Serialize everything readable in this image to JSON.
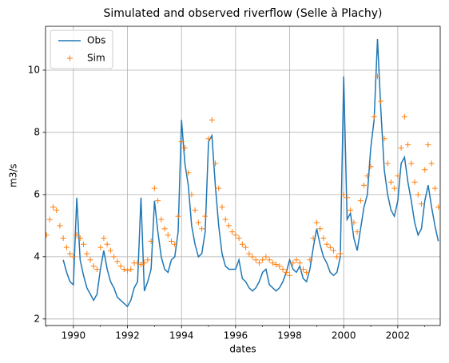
{
  "chart_data": {
    "type": "line",
    "title": "Simulated and observed riverflow (Selle à Plachy)",
    "xlabel": "dates",
    "ylabel": "m3/s",
    "x": [
      1989.0,
      1989.125,
      1989.25,
      1989.375,
      1989.5,
      1989.625,
      1989.75,
      1989.875,
      1990.0,
      1990.125,
      1990.25,
      1990.375,
      1990.5,
      1990.625,
      1990.75,
      1990.875,
      1991.0,
      1991.125,
      1991.25,
      1991.375,
      1991.5,
      1991.625,
      1991.75,
      1991.875,
      1992.0,
      1992.125,
      1992.25,
      1992.375,
      1992.5,
      1992.625,
      1992.75,
      1992.875,
      1993.0,
      1993.125,
      1993.25,
      1993.375,
      1993.5,
      1993.625,
      1993.75,
      1993.875,
      1994.0,
      1994.125,
      1994.25,
      1994.375,
      1994.5,
      1994.625,
      1994.75,
      1994.875,
      1995.0,
      1995.125,
      1995.25,
      1995.375,
      1995.5,
      1995.625,
      1995.75,
      1995.875,
      1996.0,
      1996.125,
      1996.25,
      1996.375,
      1996.5,
      1996.625,
      1996.75,
      1996.875,
      1997.0,
      1997.125,
      1997.25,
      1997.375,
      1997.5,
      1997.625,
      1997.75,
      1997.875,
      1998.0,
      1998.125,
      1998.25,
      1998.375,
      1998.5,
      1998.625,
      1998.75,
      1998.875,
      1999.0,
      1999.125,
      1999.25,
      1999.375,
      1999.5,
      1999.625,
      1999.75,
      1999.875,
      2000.0,
      2000.125,
      2000.25,
      2000.375,
      2000.5,
      2000.625,
      2000.75,
      2000.875,
      2001.0,
      2001.125,
      2001.25,
      2001.375,
      2001.5,
      2001.625,
      2001.75,
      2001.875,
      2002.0,
      2002.125,
      2002.25,
      2002.375,
      2002.5,
      2002.625,
      2002.75,
      2002.875,
      2003.0,
      2003.125,
      2003.25,
      2003.375,
      2003.5
    ],
    "series": [
      {
        "name": "Obs",
        "color": "#1f77b4",
        "marker": null,
        "values": [
          null,
          null,
          null,
          null,
          null,
          3.9,
          3.5,
          3.2,
          3.1,
          5.9,
          3.9,
          3.4,
          3.0,
          2.8,
          2.6,
          2.8,
          3.6,
          4.2,
          3.6,
          3.2,
          3.0,
          2.7,
          2.6,
          2.5,
          2.4,
          2.6,
          3.0,
          3.2,
          5.9,
          2.9,
          3.2,
          3.6,
          5.8,
          4.8,
          4.0,
          3.6,
          3.5,
          3.9,
          4.0,
          4.8,
          8.4,
          7.0,
          6.3,
          5.0,
          4.4,
          4.0,
          4.1,
          4.8,
          7.7,
          7.9,
          6.3,
          5.0,
          4.1,
          3.7,
          3.6,
          3.6,
          3.6,
          3.9,
          3.3,
          3.2,
          3.0,
          2.9,
          3.0,
          3.2,
          3.5,
          3.6,
          3.1,
          3.0,
          2.9,
          3.0,
          3.2,
          3.5,
          3.9,
          3.6,
          3.5,
          3.7,
          3.3,
          3.2,
          3.6,
          4.3,
          4.9,
          4.4,
          4.0,
          3.8,
          3.5,
          3.4,
          3.5,
          4.0,
          9.8,
          5.2,
          5.4,
          4.6,
          4.2,
          4.9,
          5.6,
          6.0,
          7.5,
          8.4,
          11.0,
          8.7,
          6.8,
          6.0,
          5.5,
          5.3,
          5.8,
          7.0,
          7.2,
          6.4,
          5.8,
          5.1,
          4.7,
          4.9,
          5.8,
          6.3,
          5.6,
          5.0,
          4.5
        ]
      },
      {
        "name": "Sim",
        "color": "#ff7f0e",
        "marker": "+",
        "values": [
          4.7,
          5.2,
          5.6,
          5.5,
          5.0,
          4.6,
          4.3,
          4.1,
          4.0,
          4.7,
          4.6,
          4.4,
          4.1,
          3.9,
          3.7,
          3.6,
          4.3,
          4.6,
          4.4,
          4.2,
          4.0,
          3.85,
          3.7,
          3.6,
          3.55,
          3.6,
          3.8,
          3.8,
          3.75,
          3.8,
          3.9,
          4.5,
          6.2,
          5.8,
          5.2,
          4.9,
          4.7,
          4.5,
          4.4,
          5.3,
          7.7,
          7.5,
          6.7,
          6.0,
          5.5,
          5.1,
          4.9,
          5.3,
          7.8,
          8.4,
          7.0,
          6.2,
          5.6,
          5.2,
          5.0,
          4.8,
          4.7,
          4.6,
          4.4,
          4.3,
          4.1,
          4.0,
          3.9,
          3.8,
          3.9,
          4.0,
          3.9,
          3.8,
          3.75,
          3.7,
          3.6,
          3.5,
          3.4,
          3.8,
          3.9,
          3.8,
          3.6,
          3.5,
          3.9,
          4.6,
          5.1,
          4.9,
          4.6,
          4.4,
          4.3,
          4.2,
          4.0,
          4.1,
          6.0,
          5.9,
          5.5,
          5.1,
          4.8,
          5.8,
          6.3,
          6.6,
          6.9,
          8.5,
          9.8,
          9.0,
          7.8,
          7.0,
          6.4,
          6.2,
          6.6,
          7.5,
          8.5,
          7.6,
          7.0,
          6.4,
          6.0,
          5.7,
          6.8,
          7.6,
          7.0,
          6.2,
          5.6
        ]
      }
    ],
    "xlim": [
      1988.97,
      2003.57
    ],
    "ylim": [
      1.79,
      11.41
    ],
    "xticks": [
      1990,
      1992,
      1994,
      1996,
      1998,
      2000,
      2002
    ],
    "xticks_minor": [
      1989,
      1991,
      1993,
      1995,
      1997,
      1999,
      2001,
      2003
    ],
    "yticks": [
      2,
      4,
      6,
      8,
      10
    ],
    "grid": true,
    "legend": "upper left"
  }
}
